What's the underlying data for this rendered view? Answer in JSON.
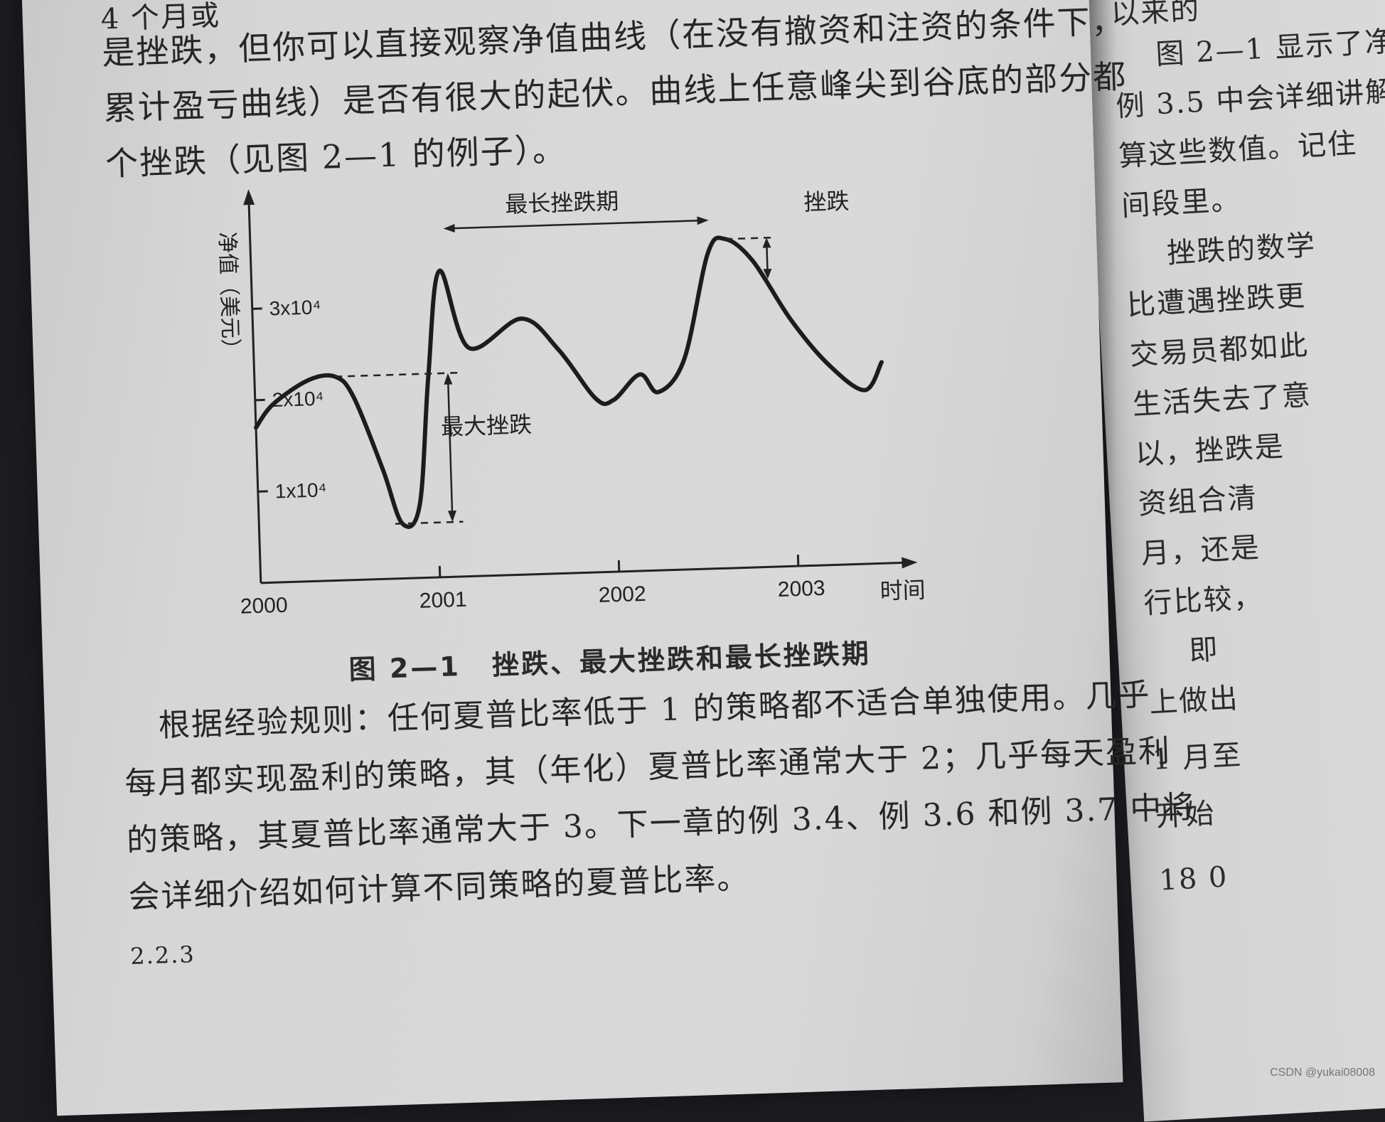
{
  "top_lines": [
    "4 个月或",
    "是挫跌，但你可以直接观察净值曲线（在没有撤资和注资的条件下，",
    "累计盈亏曲线）是否有很大的起伏。曲线上任意峰尖到谷底的部分都",
    "个挫跌（见图 2—1 的例子）。"
  ],
  "figure": {
    "y_axis_title": "净值（美元）",
    "x_axis_title": "时间",
    "y_ticks": [
      "1x10⁴",
      "2x10⁴",
      "3x10⁴"
    ],
    "x_ticks": [
      "2000",
      "2001",
      "2002",
      "2003"
    ],
    "annotation_longest": "最长挫跌期",
    "annotation_drawdown": "挫跌",
    "annotation_max": "最大挫跌",
    "caption_num": "图 2—1",
    "caption_text": "挫跌、最大挫跌和最长挫跌期"
  },
  "chart_data": {
    "type": "line",
    "xlabel": "时间",
    "ylabel": "净值（美元）",
    "x_ticks": [
      "2000",
      "2001",
      "2002",
      "2003"
    ],
    "y_ticks": [
      10000,
      20000,
      30000
    ],
    "series": [
      {
        "x": [
          2000.0,
          2000.1,
          2000.3,
          2000.45,
          2000.55,
          2000.7,
          2000.8,
          2000.9,
          2000.97,
          2001.05,
          2001.2,
          2001.5,
          2001.7,
          2001.9,
          2002.0,
          2002.15,
          2002.25,
          2002.4,
          2002.55,
          2002.65,
          2002.8,
          2003.0,
          2003.2,
          2003.4,
          2003.5
        ],
        "y": [
          17000,
          19500,
          22000,
          22300,
          20000,
          12000,
          6000,
          8000,
          22000,
          33500,
          25000,
          28000,
          24500,
          19000,
          18800,
          21500,
          19500,
          23000,
          34500,
          36000,
          33500,
          27000,
          22000,
          19000,
          22000
        ]
      }
    ],
    "annotations": [
      "最长挫跌期",
      "挫跌",
      "最大挫跌"
    ]
  },
  "bottom_lines": [
    "根据经验规则：任何夏普比率低于 1 的策略都不适合单独使用。几乎",
    "每月都实现盈利的策略，其（年化）夏普比率通常大于 2；几乎每天盈利",
    "的策略，其夏普比率通常大于 3。下一章的例 3.4、例 3.6 和例 3.7 中将",
    "会详细介绍如何计算不同策略的夏普比率。",
    "2.2.3"
  ],
  "right_lines": [
    "以来的",
    "图 2—1 显示了净",
    "例 3.5 中会详细讲解",
    "算这些数值。记住",
    "间段里。",
    "挫跌的数学",
    "比遭遇挫跌更",
    "交易员都如此",
    "生活失去了意",
    "以，挫跌是",
    "资组合清",
    "月，还是",
    "行比较，",
    "即",
    "上做出",
    "1 月至",
    "开始",
    "18 0"
  ],
  "watermark": "CSDN @yukai08008"
}
